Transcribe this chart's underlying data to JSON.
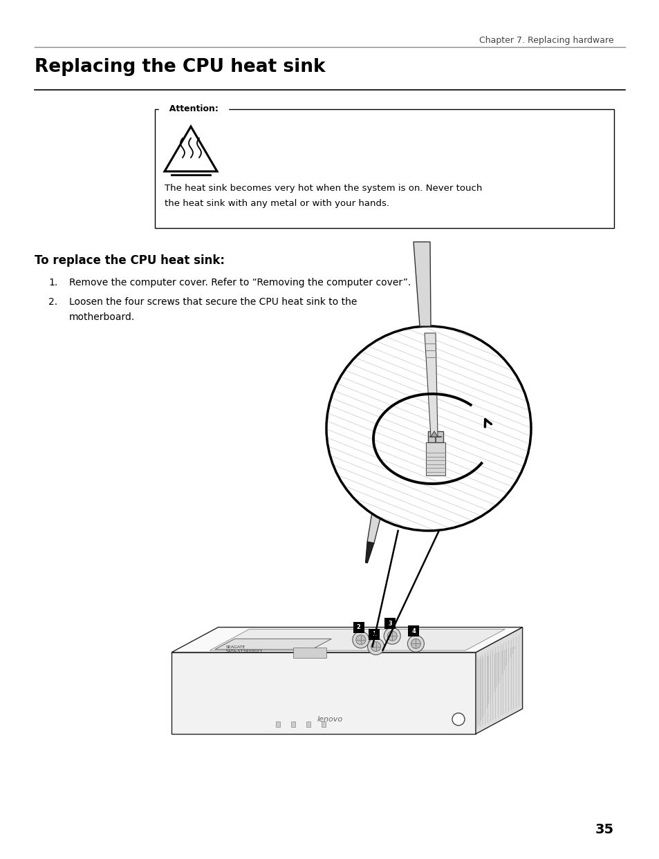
{
  "page_bg": "#ffffff",
  "chapter_header": "Chapter 7. Replacing hardware",
  "chapter_header_color": "#444444",
  "chapter_header_fontsize": 9,
  "top_rule_color": "#888888",
  "title": "Replacing the CPU heat sink",
  "title_fontsize": 19,
  "attention_label": "Attention:",
  "attention_text_line1": "The heat sink becomes very hot when the system is on. Never touch",
  "attention_text_line2": "the heat sink with any metal or with your hands.",
  "subsection_title": "To replace the CPU heat sink:",
  "subsection_title_fontsize": 12,
  "step1": "Remove the computer cover. Refer to “Removing the computer cover”.",
  "step2_line1": "Loosen the four screws that secure the CPU heat sink to the",
  "step2_line2": "motherboard.",
  "step_fontsize": 10,
  "page_number": "35",
  "page_number_fontsize": 14
}
